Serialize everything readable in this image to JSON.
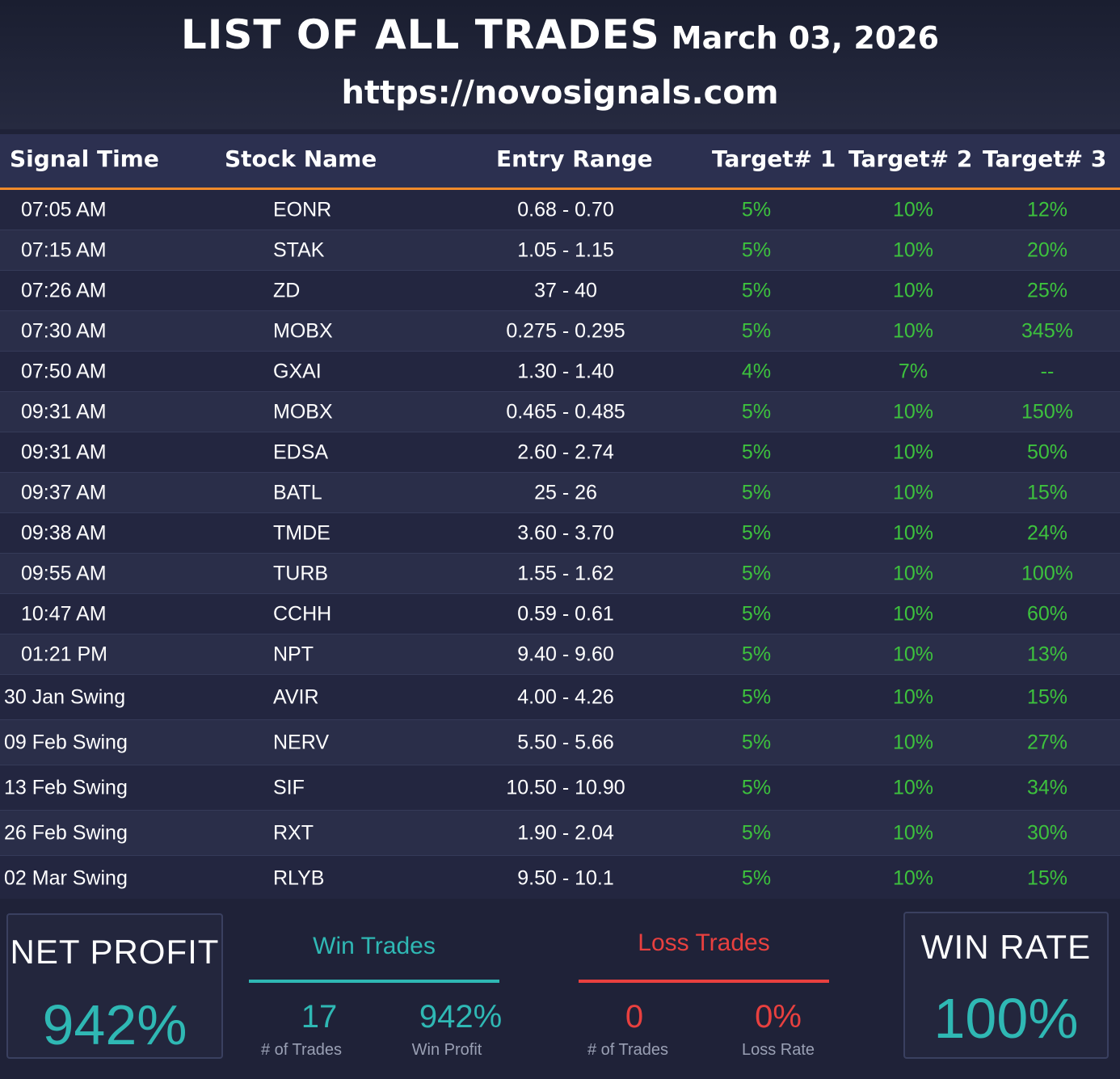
{
  "header": {
    "title": "LIST OF ALL TRADES",
    "date": "March 03, 2026",
    "url": "https://novosignals.com"
  },
  "columns": {
    "signal_time": "Signal Time",
    "stock_name": "Stock Name",
    "entry_range": "Entry Range",
    "target1": "Target# 1",
    "target2": "Target# 2",
    "target3": "Target# 3"
  },
  "trades": [
    {
      "time": "07:05 AM",
      "stock": "EONR",
      "entry": "0.68 - 0.70",
      "t1": "5%",
      "t2": "10%",
      "t3": "12%"
    },
    {
      "time": "07:15 AM",
      "stock": "STAK",
      "entry": "1.05 - 1.15",
      "t1": "5%",
      "t2": "10%",
      "t3": "20%"
    },
    {
      "time": "07:26 AM",
      "stock": "ZD",
      "entry": "37 - 40",
      "t1": "5%",
      "t2": "10%",
      "t3": "25%"
    },
    {
      "time": "07:30 AM",
      "stock": "MOBX",
      "entry": "0.275 - 0.295",
      "t1": "5%",
      "t2": "10%",
      "t3": "345%"
    },
    {
      "time": "07:50 AM",
      "stock": "GXAI",
      "entry": "1.30 - 1.40",
      "t1": "4%",
      "t2": "7%",
      "t3": "--"
    },
    {
      "time": "09:31 AM",
      "stock": "MOBX",
      "entry": "0.465 - 0.485",
      "t1": "5%",
      "t2": "10%",
      "t3": "150%"
    },
    {
      "time": "09:31 AM",
      "stock": "EDSA",
      "entry": "2.60 - 2.74",
      "t1": "5%",
      "t2": "10%",
      "t3": "50%"
    },
    {
      "time": "09:37 AM",
      "stock": "BATL",
      "entry": "25 - 26",
      "t1": "5%",
      "t2": "10%",
      "t3": "15%"
    },
    {
      "time": "09:38 AM",
      "stock": "TMDE",
      "entry": "3.60 - 3.70",
      "t1": "5%",
      "t2": "10%",
      "t3": "24%"
    },
    {
      "time": "09:55 AM",
      "stock": "TURB",
      "entry": "1.55 - 1.62",
      "t1": "5%",
      "t2": "10%",
      "t3": "100%"
    },
    {
      "time": "10:47 AM",
      "stock": "CCHH",
      "entry": "0.59 - 0.61",
      "t1": "5%",
      "t2": "10%",
      "t3": "60%"
    },
    {
      "time": "01:21 PM",
      "stock": "NPT",
      "entry": "9.40 - 9.60",
      "t1": "5%",
      "t2": "10%",
      "t3": "13%"
    },
    {
      "time": "30 Jan Swing",
      "stock": "AVIR",
      "entry": "4.00 - 4.26",
      "t1": "5%",
      "t2": "10%",
      "t3": "15%"
    },
    {
      "time": "09 Feb Swing",
      "stock": "NERV",
      "entry": "5.50 - 5.66",
      "t1": "5%",
      "t2": "10%",
      "t3": "27%"
    },
    {
      "time": "13 Feb Swing",
      "stock": "SIF",
      "entry": "10.50 - 10.90",
      "t1": "5%",
      "t2": "10%",
      "t3": "34%"
    },
    {
      "time": "26 Feb Swing",
      "stock": "RXT",
      "entry": "1.90 - 2.04",
      "t1": "5%",
      "t2": "10%",
      "t3": "30%"
    },
    {
      "time": "02 Mar Swing",
      "stock": "RLYB",
      "entry": "9.50 - 10.1",
      "t1": "5%",
      "t2": "10%",
      "t3": "15%"
    }
  ],
  "summary": {
    "net_profit_label": "NET PROFIT",
    "net_profit_value": "942%",
    "win_title": "Win Trades",
    "win_count": "17",
    "win_count_caption": "# of Trades",
    "win_profit": "942%",
    "win_profit_caption": "Win Profit",
    "loss_title": "Loss Trades",
    "loss_count": "0",
    "loss_count_caption": "# of Trades",
    "loss_rate": "0%",
    "loss_rate_caption": "Loss Rate",
    "win_rate_label": "WIN RATE",
    "win_rate_value": "100%"
  },
  "colors": {
    "accent_orange": "#f08a2a",
    "target_green": "#3dc23d",
    "teal": "#2fb8b4",
    "loss_red": "#e8403f"
  }
}
